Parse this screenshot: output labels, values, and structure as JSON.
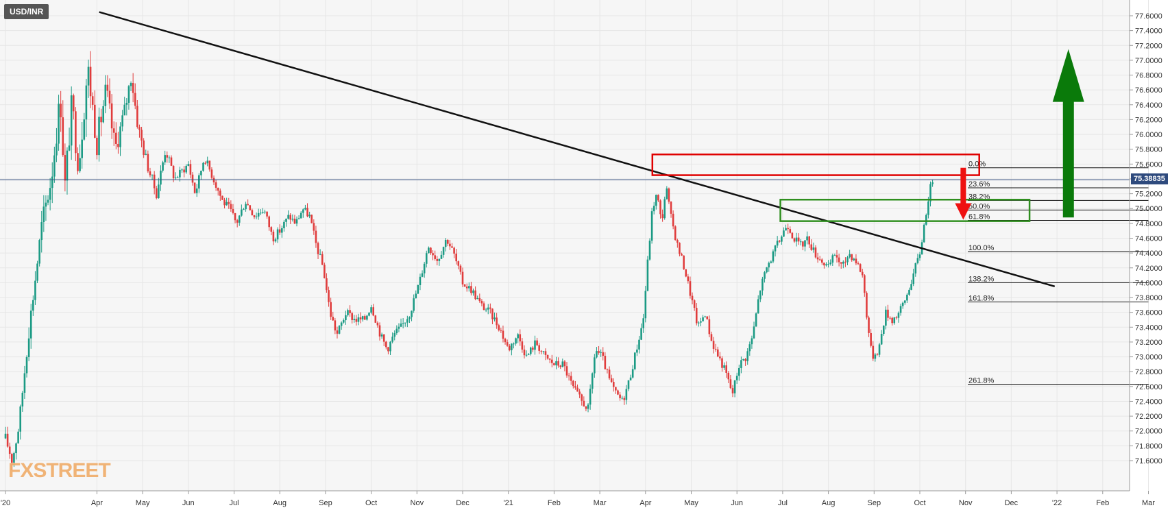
{
  "symbol": "USD/INR",
  "current_price": "75.38835",
  "watermark": "FXSTREET",
  "colors": {
    "bull": "#1b9a84",
    "bear": "#e03c3c",
    "trendline": "#111111",
    "fib": "#111111",
    "supply_box": "#e00000",
    "demand_box": "#2f8f1f",
    "down_arrow": "#ee1111",
    "up_arrow": "#0a7a0a",
    "price_line": "#2e4a7d",
    "grid": "#e6e6e6",
    "plot_bg": "#f6f6f6"
  },
  "chart_data": {
    "type": "candlestick",
    "title": "USD/INR",
    "ylim": [
      71.5,
      77.8
    ],
    "y_ticks": [
      "71.6000",
      "71.8000",
      "72.0000",
      "72.2000",
      "72.4000",
      "72.6000",
      "72.8000",
      "73.0000",
      "73.2000",
      "73.4000",
      "73.6000",
      "73.8000",
      "74.0000",
      "74.2000",
      "74.4000",
      "74.6000",
      "74.8000",
      "75.0000",
      "75.2000",
      "75.4000",
      "75.6000",
      "75.8000",
      "76.0000",
      "76.2000",
      "76.4000",
      "76.6000",
      "76.8000",
      "77.0000",
      "77.2000",
      "77.4000",
      "77.6000"
    ],
    "x_ticks": [
      {
        "label": "'20",
        "t": 0.0
      },
      {
        "label": "Apr",
        "t": 2.0
      },
      {
        "label": "May",
        "t": 3.0
      },
      {
        "label": "Jun",
        "t": 4.0
      },
      {
        "label": "Jul",
        "t": 5.0
      },
      {
        "label": "Aug",
        "t": 6.0
      },
      {
        "label": "Sep",
        "t": 7.0
      },
      {
        "label": "Oct",
        "t": 8.0
      },
      {
        "label": "Nov",
        "t": 9.0
      },
      {
        "label": "Dec",
        "t": 10.0
      },
      {
        "label": "'21",
        "t": 11.0
      },
      {
        "label": "Feb",
        "t": 12.0
      },
      {
        "label": "Mar",
        "t": 13.0
      },
      {
        "label": "Apr",
        "t": 14.0
      },
      {
        "label": "May",
        "t": 15.0
      },
      {
        "label": "Jun",
        "t": 16.0
      },
      {
        "label": "Jul",
        "t": 17.0
      },
      {
        "label": "Aug",
        "t": 18.0
      },
      {
        "label": "Sep",
        "t": 19.0
      },
      {
        "label": "Oct",
        "t": 20.0
      },
      {
        "label": "Nov",
        "t": 21.0
      },
      {
        "label": "Dec",
        "t": 22.0
      },
      {
        "label": "'22",
        "t": 23.0
      },
      {
        "label": "Feb",
        "t": 24.0
      },
      {
        "label": "Mar",
        "t": 25.0
      }
    ],
    "price_path": [
      [
        0.0,
        71.9
      ],
      [
        0.15,
        71.6
      ],
      [
        0.3,
        72.1
      ],
      [
        0.5,
        73.3
      ],
      [
        0.8,
        74.8
      ],
      [
        1.0,
        75.4
      ],
      [
        1.2,
        76.5
      ],
      [
        1.3,
        75.3
      ],
      [
        1.45,
        76.4
      ],
      [
        1.6,
        75.6
      ],
      [
        1.8,
        76.9
      ],
      [
        2.0,
        75.9
      ],
      [
        2.2,
        76.6
      ],
      [
        2.4,
        75.8
      ],
      [
        2.6,
        76.3
      ],
      [
        2.75,
        76.8
      ],
      [
        2.9,
        76.1
      ],
      [
        3.1,
        75.6
      ],
      [
        3.3,
        75.2
      ],
      [
        3.5,
        75.8
      ],
      [
        3.7,
        75.4
      ],
      [
        3.85,
        75.5
      ],
      [
        4.0,
        75.6
      ],
      [
        4.15,
        75.2
      ],
      [
        4.35,
        75.7
      ],
      [
        4.55,
        75.4
      ],
      [
        4.75,
        75.1
      ],
      [
        4.9,
        75.0
      ],
      [
        5.05,
        74.8
      ],
      [
        5.25,
        75.1
      ],
      [
        5.45,
        74.9
      ],
      [
        5.65,
        75.0
      ],
      [
        5.85,
        74.6
      ],
      [
        6.0,
        74.7
      ],
      [
        6.2,
        74.9
      ],
      [
        6.35,
        74.8
      ],
      [
        6.5,
        75.0
      ],
      [
        6.65,
        74.9
      ],
      [
        6.8,
        74.5
      ],
      [
        6.95,
        74.2
      ],
      [
        7.1,
        73.6
      ],
      [
        7.25,
        73.3
      ],
      [
        7.45,
        73.6
      ],
      [
        7.65,
        73.5
      ],
      [
        7.85,
        73.5
      ],
      [
        8.0,
        73.7
      ],
      [
        8.2,
        73.3
      ],
      [
        8.35,
        73.1
      ],
      [
        8.5,
        73.3
      ],
      [
        8.65,
        73.4
      ],
      [
        8.85,
        73.6
      ],
      [
        9.05,
        74.0
      ],
      [
        9.25,
        74.5
      ],
      [
        9.45,
        74.3
      ],
      [
        9.65,
        74.6
      ],
      [
        9.8,
        74.4
      ],
      [
        10.0,
        74.0
      ],
      [
        10.2,
        73.9
      ],
      [
        10.4,
        73.7
      ],
      [
        10.6,
        73.6
      ],
      [
        10.8,
        73.4
      ],
      [
        11.0,
        73.1
      ],
      [
        11.2,
        73.3
      ],
      [
        11.4,
        73.0
      ],
      [
        11.6,
        73.2
      ],
      [
        11.8,
        73.0
      ],
      [
        12.0,
        72.9
      ],
      [
        12.2,
        72.9
      ],
      [
        12.4,
        72.6
      ],
      [
        12.6,
        72.4
      ],
      [
        12.75,
        72.3
      ],
      [
        12.9,
        73.1
      ],
      [
        13.05,
        73.0
      ],
      [
        13.2,
        72.7
      ],
      [
        13.35,
        72.5
      ],
      [
        13.5,
        72.4
      ],
      [
        13.65,
        72.7
      ],
      [
        13.8,
        73.1
      ],
      [
        13.95,
        73.5
      ],
      [
        14.05,
        74.3
      ],
      [
        14.15,
        75.0
      ],
      [
        14.25,
        75.2
      ],
      [
        14.35,
        74.8
      ],
      [
        14.45,
        75.3
      ],
      [
        14.55,
        74.9
      ],
      [
        14.7,
        74.5
      ],
      [
        14.85,
        74.2
      ],
      [
        15.0,
        73.8
      ],
      [
        15.15,
        73.4
      ],
      [
        15.3,
        73.6
      ],
      [
        15.45,
        73.2
      ],
      [
        15.6,
        73.0
      ],
      [
        15.75,
        72.8
      ],
      [
        15.9,
        72.5
      ],
      [
        16.05,
        72.9
      ],
      [
        16.2,
        73.0
      ],
      [
        16.35,
        73.3
      ],
      [
        16.5,
        73.9
      ],
      [
        16.65,
        74.2
      ],
      [
        16.8,
        74.4
      ],
      [
        16.95,
        74.6
      ],
      [
        17.1,
        74.8
      ],
      [
        17.25,
        74.6
      ],
      [
        17.4,
        74.5
      ],
      [
        17.55,
        74.6
      ],
      [
        17.7,
        74.4
      ],
      [
        17.85,
        74.3
      ],
      [
        18.0,
        74.2
      ],
      [
        18.15,
        74.4
      ],
      [
        18.3,
        74.2
      ],
      [
        18.45,
        74.4
      ],
      [
        18.6,
        74.3
      ],
      [
        18.75,
        74.1
      ],
      [
        18.85,
        73.5
      ],
      [
        18.95,
        73.0
      ],
      [
        19.1,
        73.1
      ],
      [
        19.25,
        73.6
      ],
      [
        19.4,
        73.5
      ],
      [
        19.55,
        73.6
      ],
      [
        19.7,
        73.8
      ],
      [
        19.85,
        74.1
      ],
      [
        20.0,
        74.4
      ],
      [
        20.1,
        74.8
      ],
      [
        20.2,
        75.2
      ],
      [
        20.3,
        75.45
      ]
    ],
    "trendline": {
      "from": [
        2.05,
        77.65
      ],
      "to": [
        22.95,
        73.95
      ]
    },
    "horizontal_line": 75.38835,
    "fib_levels": [
      {
        "label": "0.0%",
        "value": 75.55
      },
      {
        "label": "23.6%",
        "value": 75.28
      },
      {
        "label": "38.2%",
        "value": 75.11
      },
      {
        "label": "50.0%",
        "value": 74.98
      },
      {
        "label": "61.8%",
        "value": 74.84
      },
      {
        "label": "100.0%",
        "value": 74.42
      },
      {
        "label": "138.2%",
        "value": 74.0
      },
      {
        "label": "161.8%",
        "value": 73.74
      },
      {
        "label": "261.8%",
        "value": 72.63
      }
    ],
    "fib_range": {
      "from": 21.05,
      "to": 25.0
    },
    "supply_zone": {
      "t0": 14.15,
      "t1": 21.3,
      "low": 75.45,
      "high": 75.73
    },
    "demand_zone": {
      "t0": 16.95,
      "t1": 22.4,
      "low": 74.83,
      "high": 75.12
    },
    "down_arrow": {
      "t": 20.95,
      "from": 75.55,
      "to": 74.85
    },
    "up_arrow": {
      "t": 23.25,
      "from": 74.88,
      "to": 77.15
    }
  }
}
